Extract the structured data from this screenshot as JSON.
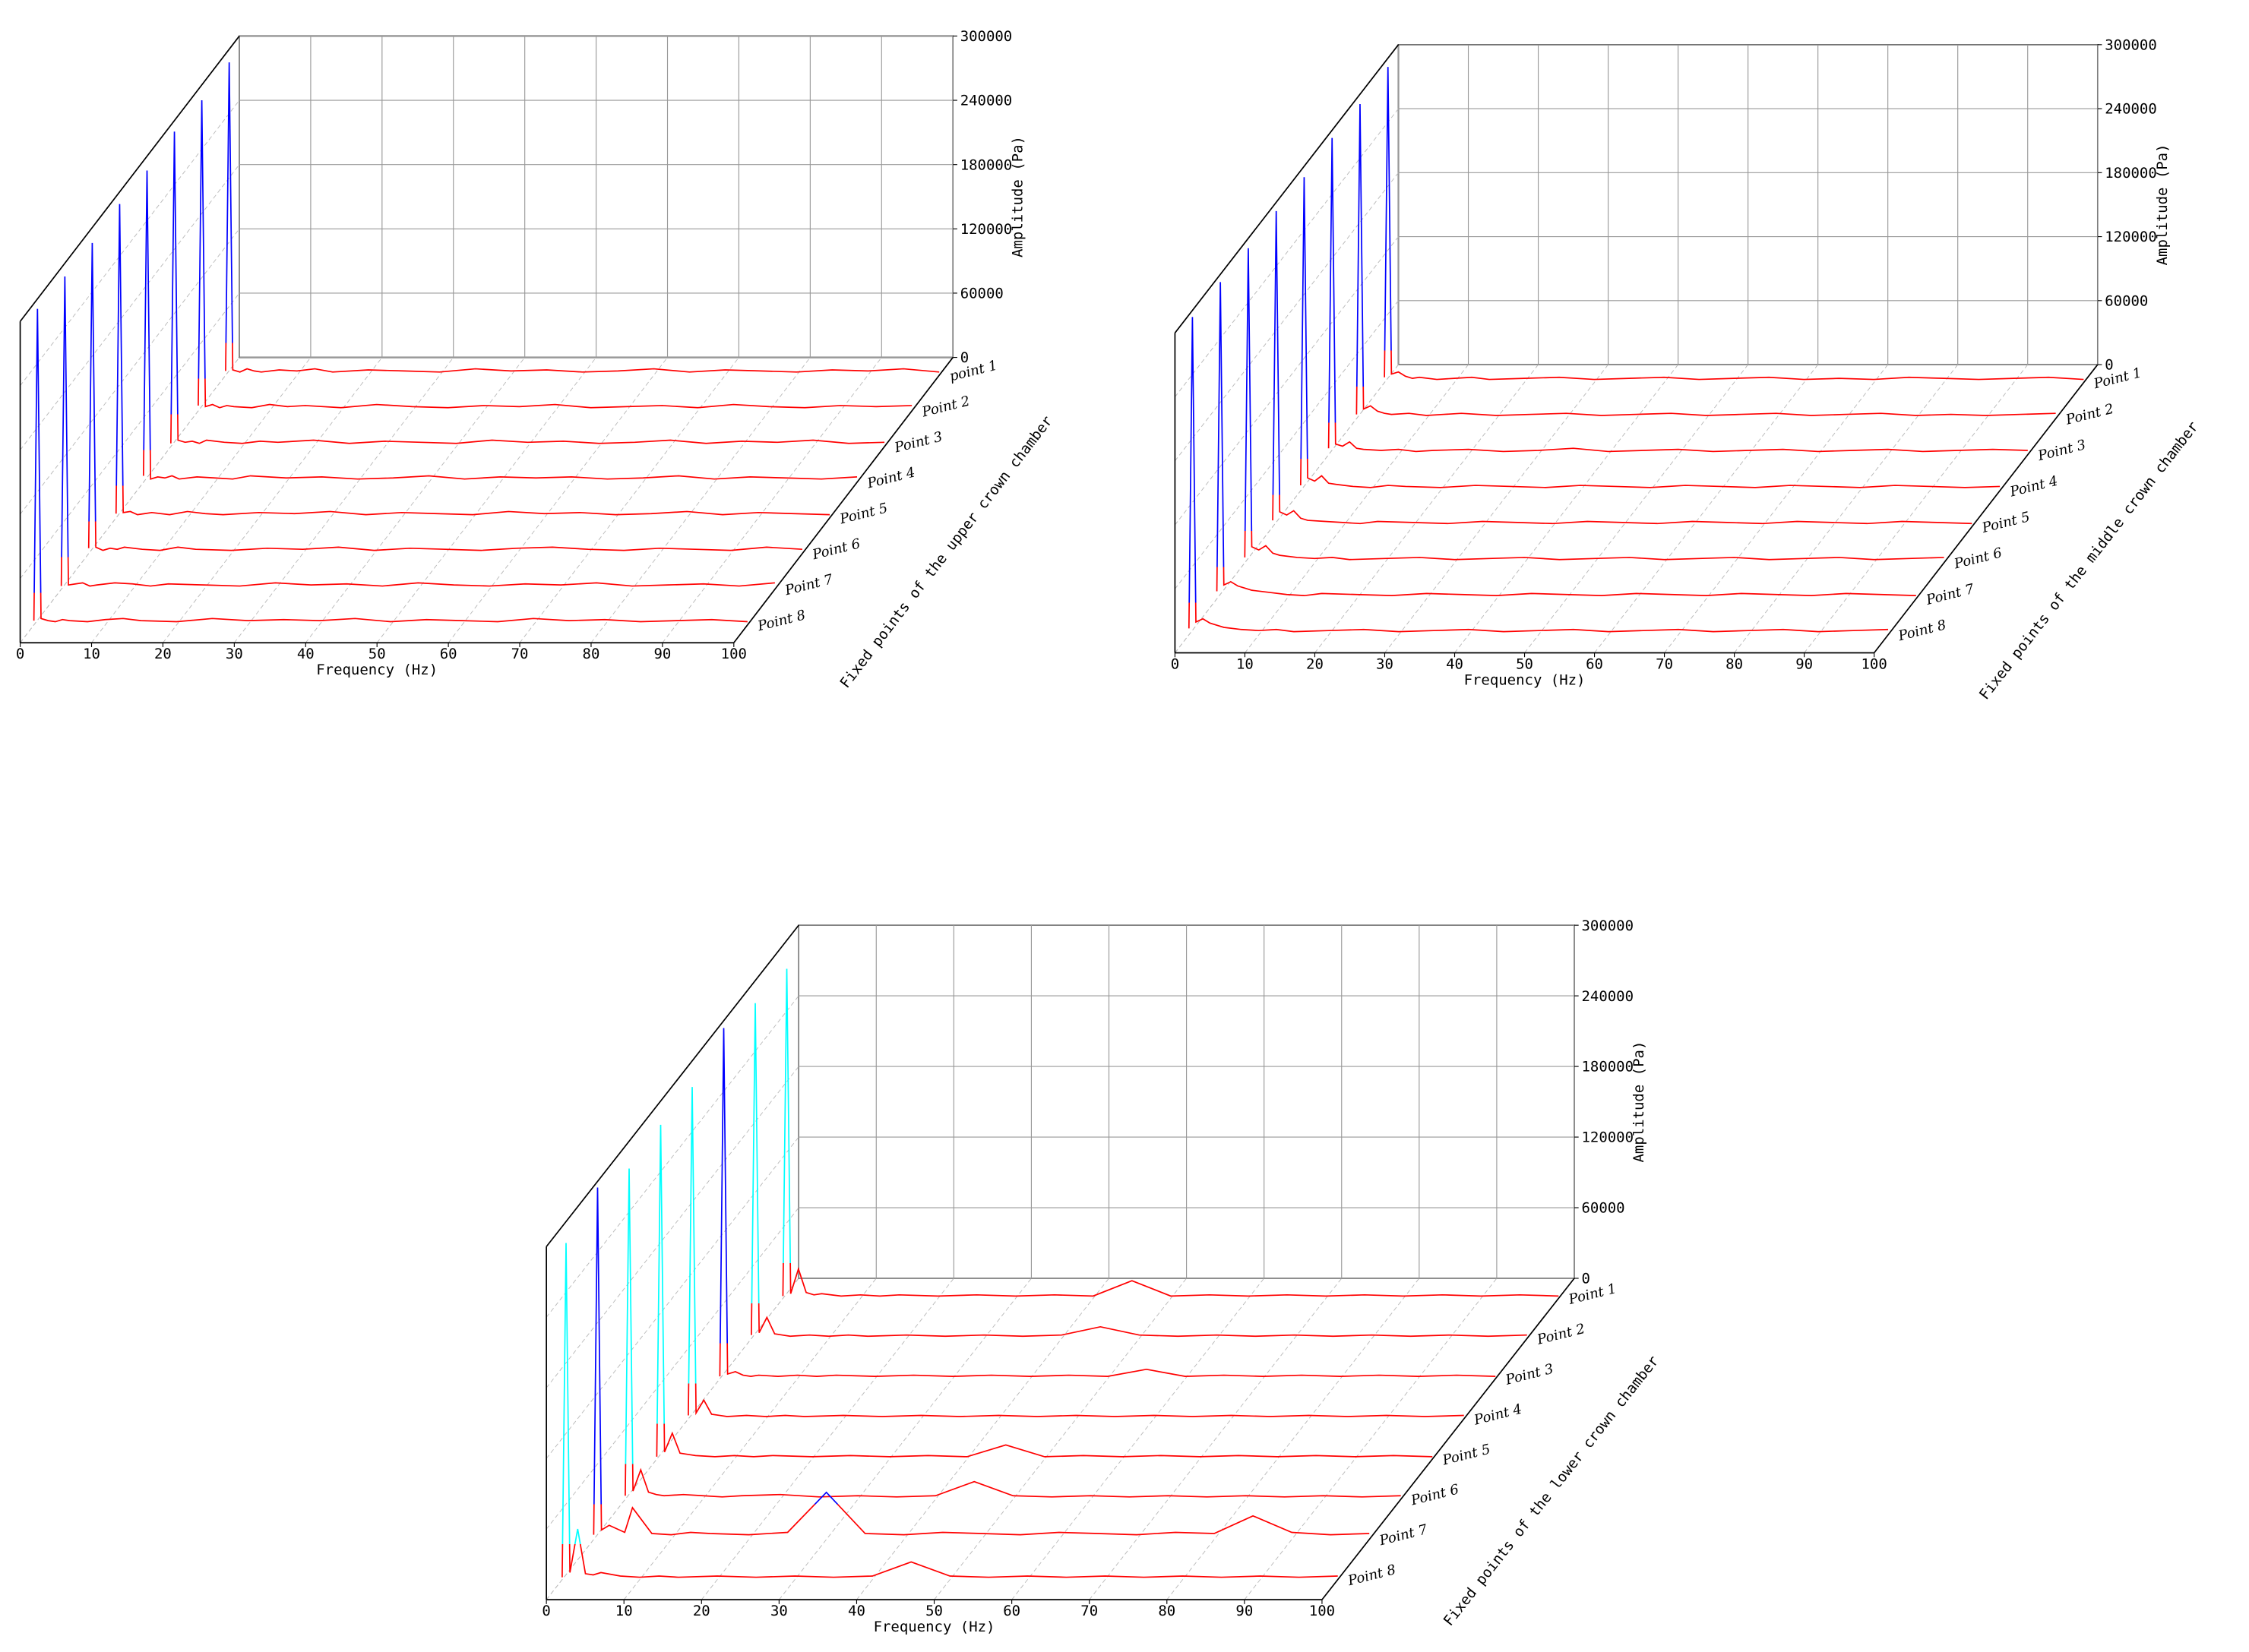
{
  "chart_data": [
    {
      "type": "waterfall",
      "x_label": "Frequency (Hz)",
      "y_label": "Amplitude (Pa)",
      "depth_label": "Fixed points of the upper crown chamber",
      "x": [
        0,
        0.5,
        1,
        2,
        3,
        4,
        5,
        7.5,
        10,
        12.5,
        15,
        20,
        25,
        30,
        35,
        40,
        45,
        50,
        55,
        60,
        65,
        70,
        75,
        80,
        85,
        90,
        95,
        100
      ],
      "xlim": [
        0,
        100
      ],
      "xticks": [
        0,
        10,
        20,
        30,
        40,
        50,
        60,
        70,
        80,
        90,
        100
      ],
      "ylim": [
        0,
        300000
      ],
      "yticks": [
        0,
        60000,
        120000,
        180000,
        240000,
        300000
      ],
      "grid": true,
      "series": [
        {
          "name": "point 1",
          "color": "#ff0000",
          "peak_color": "#0000ff",
          "values": [
            4000,
            292000,
            5000,
            3000,
            6000,
            4000,
            3000,
            5000,
            4000,
            6000,
            3000,
            5000,
            4000,
            3000,
            6000,
            4000,
            5000,
            3000,
            4000,
            6000,
            3000,
            5000,
            4000,
            3000,
            5000,
            4000,
            6000,
            3000
          ]
        },
        {
          "name": "Point 2",
          "color": "#ff0000",
          "peak_color": "#0000ff",
          "values": [
            5000,
            290000,
            4000,
            6000,
            3000,
            5000,
            4000,
            3000,
            6000,
            4000,
            5000,
            3000,
            6000,
            4000,
            3000,
            5000,
            4000,
            6000,
            3000,
            4000,
            5000,
            3000,
            6000,
            4000,
            3000,
            5000,
            4000,
            5000
          ]
        },
        {
          "name": "Point 3",
          "color": "#ff0000",
          "peak_color": "#0000ff",
          "values": [
            3000,
            294000,
            6000,
            4000,
            5000,
            3000,
            6000,
            4000,
            3000,
            5000,
            4000,
            6000,
            3000,
            5000,
            4000,
            3000,
            6000,
            4000,
            5000,
            3000,
            4000,
            6000,
            3000,
            5000,
            4000,
            6000,
            3000,
            4000
          ]
        },
        {
          "name": "Point 4",
          "color": "#ff0000",
          "peak_color": "#0000ff",
          "values": [
            6000,
            291000,
            3000,
            5000,
            4000,
            6000,
            3000,
            5000,
            4000,
            3000,
            6000,
            4000,
            5000,
            3000,
            4000,
            6000,
            3000,
            5000,
            4000,
            5000,
            3000,
            4000,
            6000,
            3000,
            5000,
            4000,
            3000,
            5000
          ]
        },
        {
          "name": "Point 5",
          "color": "#ff0000",
          "peak_color": "#0000ff",
          "values": [
            4000,
            293000,
            5000,
            6000,
            3000,
            4000,
            5000,
            3000,
            6000,
            4000,
            3000,
            5000,
            4000,
            6000,
            3000,
            5000,
            4000,
            3000,
            6000,
            4000,
            5000,
            3000,
            4000,
            6000,
            3000,
            5000,
            4000,
            3000
          ]
        },
        {
          "name": "Point 6",
          "color": "#ff0000",
          "peak_color": "#0000ff",
          "values": [
            5000,
            290000,
            6000,
            3000,
            5000,
            4000,
            6000,
            4000,
            3000,
            6000,
            4000,
            3000,
            5000,
            4000,
            6000,
            3000,
            5000,
            4000,
            3000,
            5000,
            6000,
            4000,
            3000,
            5000,
            4000,
            3000,
            6000,
            4000
          ]
        },
        {
          "name": "Point 7",
          "color": "#ff0000",
          "peak_color": "#0000ff",
          "values": [
            3000,
            292000,
            4000,
            5000,
            6000,
            3000,
            4000,
            6000,
            5000,
            3000,
            5000,
            4000,
            3000,
            6000,
            4000,
            5000,
            3000,
            6000,
            4000,
            3000,
            5000,
            4000,
            6000,
            3000,
            4000,
            5000,
            3000,
            6000
          ]
        },
        {
          "name": "Point 8",
          "color": "#ff0000",
          "peak_color": "#0000ff",
          "values": [
            4000,
            295000,
            6000,
            4000,
            3000,
            5000,
            4000,
            3000,
            5000,
            6000,
            4000,
            3000,
            6000,
            4000,
            5000,
            4000,
            6000,
            3000,
            5000,
            4000,
            3000,
            6000,
            4000,
            5000,
            3000,
            4000,
            5000,
            3000
          ]
        }
      ]
    },
    {
      "type": "waterfall",
      "x_label": "Frequency (Hz)",
      "y_label": "Amplitude (Pa)",
      "depth_label": "Fixed points of the middle crown chamber",
      "x": [
        0,
        0.5,
        1,
        2,
        3,
        4,
        5,
        7.5,
        10,
        12.5,
        15,
        20,
        25,
        30,
        35,
        40,
        45,
        50,
        55,
        60,
        65,
        70,
        75,
        80,
        85,
        90,
        95,
        100
      ],
      "xlim": [
        0,
        100
      ],
      "xticks": [
        0,
        10,
        20,
        30,
        40,
        50,
        60,
        70,
        80,
        90,
        100
      ],
      "ylim": [
        0,
        300000
      ],
      "yticks": [
        0,
        60000,
        120000,
        180000,
        240000,
        300000
      ],
      "grid": true,
      "series": [
        {
          "name": "Point 1",
          "color": "#ff0000",
          "peak_color": "#0000ff",
          "values": [
            5000,
            296000,
            8000,
            10000,
            6000,
            4000,
            5000,
            3000,
            4000,
            5000,
            3000,
            4000,
            5000,
            3000,
            4000,
            5000,
            3000,
            4000,
            5000,
            3000,
            4000,
            3000,
            5000,
            4000,
            3000,
            4000,
            5000,
            3000
          ]
        },
        {
          "name": "Point 2",
          "color": "#ff0000",
          "peak_color": "#0000ff",
          "values": [
            4000,
            295000,
            9000,
            12000,
            7000,
            5000,
            4000,
            5000,
            3000,
            4000,
            5000,
            3000,
            4000,
            5000,
            3000,
            4000,
            5000,
            3000,
            4000,
            5000,
            3000,
            4000,
            5000,
            3000,
            4000,
            3000,
            4000,
            5000
          ]
        },
        {
          "name": "Point 3",
          "color": "#ff0000",
          "peak_color": "#0000ff",
          "values": [
            6000,
            297000,
            10000,
            8000,
            12000,
            6000,
            5000,
            4000,
            5000,
            3000,
            4000,
            5000,
            3000,
            4000,
            6000,
            3000,
            4000,
            5000,
            3000,
            4000,
            5000,
            3000,
            4000,
            5000,
            3000,
            4000,
            5000,
            4000
          ]
        },
        {
          "name": "Point 4",
          "color": "#ff0000",
          "peak_color": "#0000ff",
          "values": [
            5000,
            294000,
            12000,
            9000,
            14000,
            7000,
            6000,
            4000,
            3000,
            5000,
            4000,
            3000,
            5000,
            4000,
            3000,
            5000,
            4000,
            3000,
            5000,
            4000,
            3000,
            5000,
            4000,
            3000,
            5000,
            4000,
            3000,
            4000
          ]
        },
        {
          "name": "Point 5",
          "color": "#ff0000",
          "peak_color": "#0000ff",
          "values": [
            6000,
            296000,
            14000,
            11000,
            15000,
            8000,
            6000,
            5000,
            4000,
            3000,
            5000,
            4000,
            3000,
            5000,
            4000,
            3000,
            5000,
            4000,
            3000,
            5000,
            4000,
            3000,
            5000,
            4000,
            3000,
            5000,
            4000,
            3000
          ]
        },
        {
          "name": "Point 6",
          "color": "#ff0000",
          "peak_color": "#0000ff",
          "values": [
            5000,
            295000,
            15000,
            12000,
            16000,
            9000,
            7000,
            5000,
            4000,
            5000,
            3000,
            4000,
            5000,
            3000,
            4000,
            5000,
            3000,
            4000,
            5000,
            3000,
            4000,
            5000,
            3000,
            4000,
            5000,
            3000,
            4000,
            5000
          ]
        },
        {
          "name": "Point 7",
          "color": "#ff0000",
          "peak_color": "#0000ff",
          "values": [
            7000,
            297000,
            13000,
            16000,
            12000,
            10000,
            8000,
            6000,
            4000,
            3000,
            5000,
            4000,
            3000,
            5000,
            4000,
            3000,
            5000,
            4000,
            3000,
            5000,
            4000,
            3000,
            5000,
            4000,
            3000,
            5000,
            4000,
            3000
          ]
        },
        {
          "name": "Point 8",
          "color": "#ff0000",
          "peak_color": "#0000ff",
          "values": [
            6000,
            298000,
            12000,
            15000,
            11000,
            9000,
            7000,
            5000,
            4000,
            5000,
            3000,
            4000,
            5000,
            3000,
            4000,
            5000,
            3000,
            4000,
            5000,
            3000,
            4000,
            5000,
            3000,
            4000,
            5000,
            3000,
            4000,
            5000
          ]
        }
      ]
    },
    {
      "type": "waterfall",
      "x_label": "Frequency (Hz)",
      "y_label": "Amplitude (Pa)",
      "depth_label": "Fixed points of the lower crown chamber",
      "x": [
        0,
        0.5,
        1,
        2,
        3,
        4,
        5,
        7.5,
        10,
        12.5,
        15,
        20,
        25,
        30,
        35,
        40,
        45,
        50,
        55,
        60,
        65,
        70,
        75,
        80,
        85,
        90,
        95,
        100
      ],
      "xlim": [
        0,
        100
      ],
      "xticks": [
        0,
        10,
        20,
        30,
        40,
        50,
        60,
        70,
        80,
        90,
        100
      ],
      "ylim": [
        0,
        300000
      ],
      "yticks": [
        0,
        60000,
        120000,
        180000,
        240000,
        300000
      ],
      "grid": true,
      "series": [
        {
          "name": "Point 1",
          "color": "#ff0000",
          "peak_color": "#00ffff",
          "values": [
            2000,
            280000,
            4000,
            25000,
            5000,
            3000,
            4000,
            2000,
            3000,
            2000,
            3000,
            2000,
            3000,
            2000,
            3000,
            2000,
            15000,
            2000,
            3000,
            2000,
            3000,
            2000,
            3000,
            2000,
            3000,
            2000,
            3000,
            2000
          ]
        },
        {
          "name": "Point 2",
          "color": "#ff0000",
          "peak_color": "#00ffff",
          "values": [
            3000,
            285000,
            5000,
            18000,
            4000,
            3000,
            2000,
            3000,
            2000,
            3000,
            2000,
            3000,
            2000,
            3000,
            2000,
            3000,
            10000,
            3000,
            2000,
            3000,
            2000,
            3000,
            2000,
            3000,
            2000,
            3000,
            2000,
            3000
          ]
        },
        {
          "name": "Point 3",
          "color": "#ff0000",
          "peak_color": "#0000ff",
          "values": [
            2000,
            298000,
            4000,
            6000,
            3000,
            2000,
            3000,
            2000,
            3000,
            2000,
            3000,
            2000,
            3000,
            2000,
            3000,
            2000,
            3000,
            2000,
            8000,
            2000,
            3000,
            2000,
            3000,
            2000,
            3000,
            2000,
            3000,
            2000
          ]
        },
        {
          "name": "Point 4",
          "color": "#ff0000",
          "peak_color": "#00ffff",
          "values": [
            3000,
            282000,
            5000,
            16000,
            4000,
            3000,
            2000,
            3000,
            2000,
            3000,
            2000,
            3000,
            2000,
            3000,
            2000,
            3000,
            2000,
            3000,
            2000,
            3000,
            2000,
            3000,
            2000,
            3000,
            2000,
            3000,
            2000,
            3000
          ]
        },
        {
          "name": "Point 5",
          "color": "#ff0000",
          "peak_color": "#00ffff",
          "values": [
            2000,
            284000,
            6000,
            22000,
            5000,
            4000,
            3000,
            2000,
            3000,
            2000,
            3000,
            2000,
            3000,
            2000,
            3000,
            2000,
            12000,
            2000,
            3000,
            2000,
            3000,
            2000,
            3000,
            2000,
            3000,
            2000,
            3000,
            2000
          ]
        },
        {
          "name": "Point 6",
          "color": "#ff0000",
          "peak_color": "#00ffff",
          "values": [
            3000,
            281000,
            7000,
            25000,
            6000,
            4000,
            3000,
            4000,
            3000,
            2000,
            3000,
            4000,
            2000,
            3000,
            2000,
            3000,
            15000,
            3000,
            2000,
            3000,
            2000,
            3000,
            2000,
            3000,
            2000,
            3000,
            2000,
            3000
          ]
        },
        {
          "name": "Point 7",
          "color": "#ff0000",
          "peak_color": "#0000ff",
          "values": [
            4000,
            299000,
            8000,
            12000,
            9000,
            6000,
            27000,
            5000,
            4000,
            6000,
            5000,
            4000,
            6000,
            40000,
            5000,
            4000,
            6000,
            5000,
            4000,
            6000,
            5000,
            4000,
            6000,
            5000,
            20000,
            6000,
            4000,
            5000
          ]
        },
        {
          "name": "Point 8",
          "color": "#ff0000",
          "peak_color": "#00ffff",
          "values": [
            2000,
            286000,
            6000,
            43000,
            5000,
            4000,
            6000,
            3000,
            2000,
            3000,
            2000,
            3000,
            2000,
            3000,
            2000,
            3000,
            15000,
            3000,
            2000,
            3000,
            2000,
            3000,
            2000,
            3000,
            2000,
            3000,
            2000,
            3000
          ]
        }
      ]
    }
  ]
}
